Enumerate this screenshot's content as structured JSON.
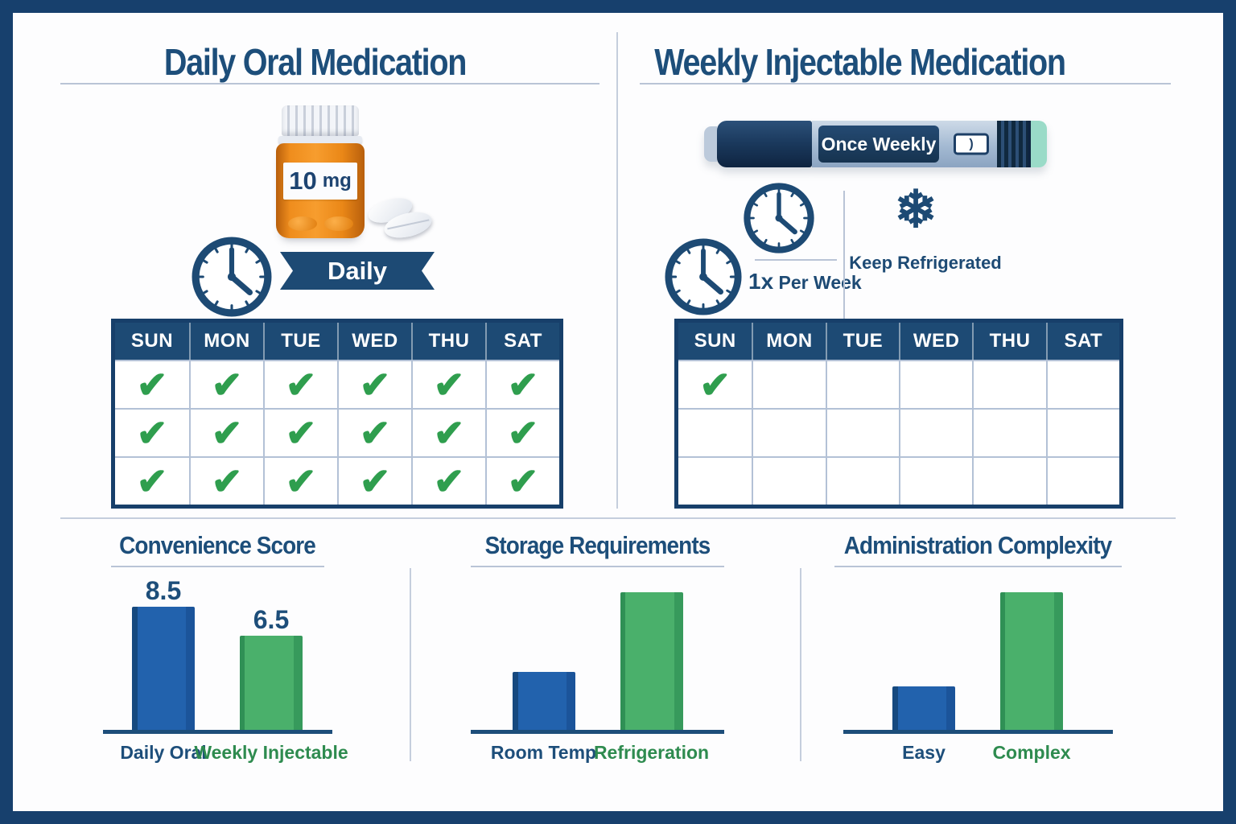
{
  "icons": {
    "check": "✔",
    "snowflake": "❄",
    "clock": "analog-clock"
  },
  "colors": {
    "navy": "#1d4e7a",
    "frame_navy": "#17406d",
    "calendar_header": "#1d4a74",
    "divider": "#c5cedd",
    "check_green": "#2f9e4e",
    "bar_blue": "#2262ad",
    "bar_green": "#4ab06b",
    "label_green": "#2e8b4f",
    "bottle_orange": "#ef8d1d",
    "pen_body_blue": "#a3b9d2",
    "pen_navy": "#1d3f66",
    "pen_mint": "#9adbc8"
  },
  "left_panel": {
    "title": "Daily Oral Medication",
    "dose_value": "10",
    "dose_unit": "mg",
    "frequency_badge": "Daily",
    "calendar": {
      "days": [
        "SUN",
        "MON",
        "TUE",
        "WED",
        "THU",
        "SAT"
      ],
      "checks": [
        [
          1,
          1,
          1,
          1,
          1,
          1
        ],
        [
          1,
          1,
          1,
          1,
          1,
          1
        ],
        [
          1,
          1,
          1,
          1,
          1,
          1
        ]
      ]
    }
  },
  "right_panel": {
    "title": "Weekly Injectable Medication",
    "pen_label": "Once Weekly",
    "pen_window_glyph": ")",
    "frequency_value": "1x",
    "frequency_text": " Per Week",
    "storage_text": "Keep Refrigerated",
    "calendar": {
      "days": [
        "SUN",
        "MON",
        "TUE",
        "WED",
        "THU",
        "SAT"
      ],
      "checks": [
        [
          1,
          0,
          0,
          0,
          0,
          0
        ],
        [
          0,
          0,
          0,
          0,
          0,
          0
        ],
        [
          0,
          0,
          0,
          0,
          0,
          0
        ]
      ]
    }
  },
  "chart_data": [
    {
      "type": "bar",
      "title": "Convenience Score",
      "categories": [
        "Daily Oral",
        "Weekly Injectable"
      ],
      "values": [
        8.5,
        6.5
      ],
      "value_labels": [
        "8.5",
        "6.5"
      ],
      "show_values": true,
      "ylim": [
        0,
        10
      ],
      "xlabel": "",
      "ylabel": "",
      "grid": false,
      "legend": "none",
      "bar_colors": [
        "#2262ad",
        "#4ab06b"
      ],
      "category_label_colors": [
        "#1d4e7a",
        "#2e8b4f"
      ]
    },
    {
      "type": "bar",
      "title": "Storage Requirements",
      "categories": [
        "Room Temp",
        "Refrigeration"
      ],
      "values": [
        4,
        9.5
      ],
      "value_labels": [],
      "show_values": false,
      "ylim": [
        0,
        10
      ],
      "xlabel": "",
      "ylabel": "",
      "grid": false,
      "legend": "none",
      "bar_colors": [
        "#2262ad",
        "#4ab06b"
      ],
      "category_label_colors": [
        "#1d4e7a",
        "#2e8b4f"
      ]
    },
    {
      "type": "bar",
      "title": "Administration Complexity",
      "categories": [
        "Easy",
        "Complex"
      ],
      "values": [
        3,
        9.5
      ],
      "value_labels": [],
      "show_values": false,
      "ylim": [
        0,
        10
      ],
      "xlabel": "",
      "ylabel": "",
      "grid": false,
      "legend": "none",
      "bar_colors": [
        "#2262ad",
        "#4ab06b"
      ],
      "category_label_colors": [
        "#1d4e7a",
        "#2e8b4f"
      ]
    }
  ]
}
